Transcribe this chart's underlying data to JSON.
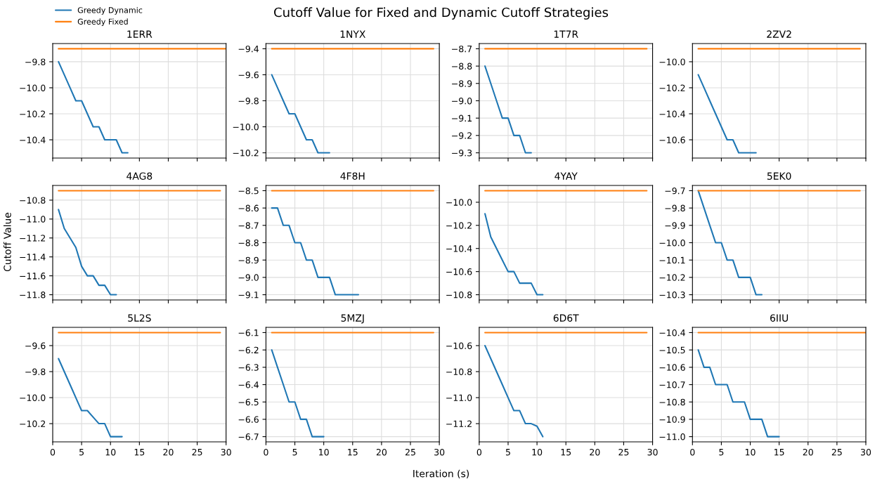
{
  "chart_data": [
    {
      "type": "line",
      "title": "1ERR",
      "annotations": [
        "Cutoff Value for Fixed and Dynamic Cutoff Strategies"
      ],
      "legend": "top left",
      "grid": true,
      "tick_labels": "y",
      "xlim": [
        0,
        30
      ],
      "xticks": [
        0,
        5,
        10,
        15,
        20,
        25,
        30
      ],
      "ylim": [
        -10.54,
        -9.66
      ],
      "yticks": [
        -10.4,
        -10.2,
        {
          "value": -10.0,
          "label": "−10.0"
        },
        -9.8
      ],
      "series": [
        {
          "name": "Greedy Dynamic",
          "color": "#1f77b4",
          "x": [
            1,
            2,
            3,
            4,
            5,
            6,
            7,
            8,
            9,
            10,
            11,
            12,
            13
          ],
          "values": [
            -9.8,
            -9.9,
            -10.0,
            -10.1,
            -10.1,
            -10.2,
            -10.3,
            -10.3,
            -10.4,
            -10.4,
            -10.4,
            -10.5,
            -10.5
          ]
        },
        {
          "name": "Greedy Fixed",
          "color": "#ff7f0e",
          "x": [
            1,
            30
          ],
          "values": [
            -9.7,
            -9.7
          ]
        }
      ]
    },
    {
      "type": "line",
      "title": "1NYX",
      "grid": true,
      "tick_labels": "y",
      "xlim": [
        0,
        30
      ],
      "xticks": [
        0,
        5,
        10,
        15,
        20,
        25,
        30
      ],
      "ylim": [
        -10.24,
        -9.36
      ],
      "yticks": [
        -10.2,
        {
          "value": -10.0,
          "label": "−10.0"
        },
        -9.8,
        -9.6,
        -9.4
      ],
      "series": [
        {
          "color": "#1f77b4",
          "x": [
            1,
            2,
            3,
            4,
            5,
            6,
            7,
            8,
            9,
            10,
            11
          ],
          "values": [
            -9.6,
            -9.7,
            -9.8,
            -9.9,
            -9.9,
            -10.0,
            -10.1,
            -10.1,
            -10.2,
            -10.2,
            -10.2
          ]
        },
        {
          "color": "#ff7f0e",
          "x": [
            1,
            29
          ],
          "values": [
            -9.4,
            -9.4
          ]
        }
      ]
    },
    {
      "type": "line",
      "title": "1T7R",
      "grid": true,
      "tick_labels": "y",
      "xlim": [
        0,
        30
      ],
      "xticks": [
        0,
        5,
        10,
        15,
        20,
        25,
        30
      ],
      "ylim": [
        -9.33,
        -8.67
      ],
      "yticks": [
        -9.3,
        -9.2,
        -9.1,
        {
          "value": -9.0,
          "label": "−9.0"
        },
        -8.9,
        -8.8,
        -8.7
      ],
      "series": [
        {
          "color": "#1f77b4",
          "x": [
            1,
            2,
            3,
            4,
            5,
            6,
            7,
            8,
            9
          ],
          "values": [
            -8.8,
            -8.9,
            -9.0,
            -9.1,
            -9.1,
            -9.2,
            -9.2,
            -9.3,
            -9.3
          ]
        },
        {
          "color": "#ff7f0e",
          "x": [
            1,
            29
          ],
          "values": [
            -8.7,
            -8.7
          ]
        }
      ]
    },
    {
      "type": "line",
      "title": "2ZV2",
      "grid": true,
      "tick_labels": "y",
      "xlim": [
        0,
        30
      ],
      "xticks": [
        0,
        5,
        10,
        15,
        20,
        25,
        30
      ],
      "ylim": [
        -10.74,
        -9.86
      ],
      "yticks": [
        -10.6,
        -10.4,
        -10.2,
        {
          "value": -10.0,
          "label": "−10.0"
        }
      ],
      "series": [
        {
          "color": "#1f77b4",
          "x": [
            1,
            2,
            3,
            4,
            5,
            6,
            7,
            8,
            9,
            10,
            11
          ],
          "values": [
            -10.1,
            -10.2,
            -10.3,
            -10.4,
            -10.5,
            -10.6,
            -10.6,
            -10.7,
            -10.7,
            -10.7,
            -10.7
          ]
        },
        {
          "color": "#ff7f0e",
          "x": [
            1,
            29
          ],
          "values": [
            -9.9,
            -9.9
          ]
        }
      ]
    },
    {
      "type": "line",
      "title": "4AG8",
      "ylabel": "Cutoff Value",
      "grid": true,
      "tick_labels": "y",
      "xlim": [
        0,
        30
      ],
      "xticks": [
        0,
        5,
        10,
        15,
        20,
        25,
        30
      ],
      "ylim": [
        -11.855,
        -10.645
      ],
      "yticks": [
        -11.8,
        -11.6,
        -11.4,
        -11.2,
        {
          "value": -11.0,
          "label": "−11.0"
        },
        -10.8
      ],
      "series": [
        {
          "color": "#1f77b4",
          "x": [
            1,
            2,
            3,
            4,
            5,
            6,
            7,
            8,
            9,
            10,
            11
          ],
          "values": [
            -10.9,
            -11.1,
            -11.2,
            -11.3,
            -11.5,
            -11.6,
            -11.6,
            -11.7,
            -11.7,
            -11.8,
            -11.8
          ]
        },
        {
          "color": "#ff7f0e",
          "x": [
            1,
            29
          ],
          "values": [
            -10.7,
            -10.7
          ]
        }
      ]
    },
    {
      "type": "line",
      "title": "4F8H",
      "grid": true,
      "tick_labels": "y",
      "xlim": [
        0,
        30
      ],
      "xticks": [
        0,
        5,
        10,
        15,
        20,
        25,
        30
      ],
      "ylim": [
        -9.13,
        -8.47
      ],
      "yticks": [
        -9.1,
        {
          "value": -9.0,
          "label": "−9.0"
        },
        -8.9,
        -8.8,
        -8.7,
        -8.6,
        -8.5
      ],
      "series": [
        {
          "color": "#1f77b4",
          "x": [
            1,
            2,
            3,
            4,
            5,
            6,
            7,
            8,
            9,
            10,
            11,
            12,
            13,
            14,
            15,
            16
          ],
          "values": [
            -8.6,
            -8.6,
            -8.7,
            -8.7,
            -8.8,
            -8.8,
            -8.9,
            -8.9,
            -9.0,
            -9.0,
            -9.0,
            -9.1,
            -9.1,
            -9.1,
            -9.1,
            -9.1
          ]
        },
        {
          "color": "#ff7f0e",
          "x": [
            1,
            29
          ],
          "values": [
            -8.5,
            -8.5
          ]
        }
      ]
    },
    {
      "type": "line",
      "title": "4YAY",
      "grid": true,
      "tick_labels": "y",
      "xlim": [
        0,
        30
      ],
      "xticks": [
        0,
        5,
        10,
        15,
        20,
        25,
        30
      ],
      "ylim": [
        -10.845,
        -9.855
      ],
      "yticks": [
        -10.8,
        -10.6,
        -10.4,
        -10.2,
        {
          "value": -10.0,
          "label": "−10.0"
        }
      ],
      "series": [
        {
          "color": "#1f77b4",
          "x": [
            1,
            2,
            3,
            4,
            5,
            6,
            7,
            8,
            9,
            10,
            11
          ],
          "values": [
            -10.1,
            -10.3,
            -10.4,
            -10.5,
            -10.6,
            -10.6,
            -10.7,
            -10.7,
            -10.7,
            -10.8,
            -10.8
          ]
        },
        {
          "color": "#ff7f0e",
          "x": [
            1,
            29
          ],
          "values": [
            -9.9,
            -9.9
          ]
        }
      ]
    },
    {
      "type": "line",
      "title": "5EK0",
      "grid": true,
      "tick_labels": "y",
      "xlim": [
        0,
        30
      ],
      "xticks": [
        0,
        5,
        10,
        15,
        20,
        25,
        30
      ],
      "ylim": [
        -10.33,
        -9.67
      ],
      "yticks": [
        -10.3,
        -10.2,
        -10.1,
        {
          "value": -10.0,
          "label": "−10.0"
        },
        -9.9,
        -9.8,
        -9.7
      ],
      "series": [
        {
          "color": "#1f77b4",
          "x": [
            1,
            2,
            3,
            4,
            5,
            6,
            7,
            8,
            9,
            10,
            11,
            12
          ],
          "values": [
            -9.7,
            -9.8,
            -9.9,
            -10.0,
            -10.0,
            -10.1,
            -10.1,
            -10.2,
            -10.2,
            -10.2,
            -10.3,
            -10.3
          ]
        },
        {
          "color": "#ff7f0e",
          "x": [
            1,
            29
          ],
          "values": [
            -9.7,
            -9.7
          ]
        }
      ]
    },
    {
      "type": "line",
      "title": "5L2S",
      "grid": true,
      "xlim": [
        0,
        30
      ],
      "xticks": [
        0,
        5,
        10,
        15,
        20,
        25,
        30
      ],
      "ylim": [
        -10.34,
        -9.46
      ],
      "yticks": [
        -10.2,
        {
          "value": -10.0,
          "label": "−10.0"
        },
        -9.8,
        -9.6
      ],
      "series": [
        {
          "color": "#1f77b4",
          "x": [
            1,
            2,
            3,
            4,
            5,
            6,
            7,
            8,
            9,
            10,
            11,
            12
          ],
          "values": [
            -9.7,
            -9.8,
            -9.9,
            -10.0,
            -10.1,
            -10.1,
            -10.15,
            -10.2,
            -10.2,
            -10.3,
            -10.3,
            -10.3
          ]
        },
        {
          "color": "#ff7f0e",
          "x": [
            1,
            29
          ],
          "values": [
            -9.5,
            -9.5
          ]
        }
      ]
    },
    {
      "type": "line",
      "title": "5MZJ",
      "xlabel": "Iteration (s)",
      "grid": true,
      "xlim": [
        0,
        30
      ],
      "xticks": [
        0,
        5,
        10,
        15,
        20,
        25,
        30
      ],
      "ylim": [
        -6.73,
        -6.07
      ],
      "yticks": [
        -6.7,
        -6.6,
        -6.5,
        -6.4,
        -6.3,
        -6.2,
        -6.1
      ],
      "series": [
        {
          "color": "#1f77b4",
          "x": [
            1,
            2,
            3,
            4,
            5,
            6,
            7,
            8,
            9,
            10
          ],
          "values": [
            -6.2,
            -6.3,
            -6.4,
            -6.5,
            -6.5,
            -6.6,
            -6.6,
            -6.7,
            -6.7,
            -6.7
          ]
        },
        {
          "color": "#ff7f0e",
          "x": [
            1,
            29
          ],
          "values": [
            -6.1,
            -6.1
          ]
        }
      ]
    },
    {
      "type": "line",
      "title": "6D6T",
      "grid": true,
      "xlim": [
        0,
        30
      ],
      "xticks": [
        0,
        5,
        10,
        15,
        20,
        25,
        30
      ],
      "ylim": [
        -11.34,
        -10.46
      ],
      "yticks": [
        -11.2,
        {
          "value": -11.0,
          "label": "−11.0"
        },
        -10.8,
        -10.6
      ],
      "series": [
        {
          "color": "#1f77b4",
          "x": [
            1,
            2,
            3,
            4,
            5,
            6,
            7,
            8,
            9,
            10,
            11
          ],
          "values": [
            -10.6,
            -10.7,
            -10.8,
            -10.9,
            -11.0,
            -11.1,
            -11.1,
            -11.2,
            -11.2,
            -11.22,
            -11.3
          ]
        },
        {
          "color": "#ff7f0e",
          "x": [
            1,
            29
          ],
          "values": [
            -10.5,
            -10.5
          ]
        }
      ]
    },
    {
      "type": "line",
      "title": "6IIU",
      "grid": true,
      "xlim": [
        0,
        30
      ],
      "xticks": [
        0,
        5,
        10,
        15,
        20,
        25,
        30
      ],
      "ylim": [
        -11.03,
        -10.37
      ],
      "yticks": [
        {
          "value": -11.0,
          "label": "−11.0"
        },
        -10.9,
        -10.8,
        -10.7,
        -10.6,
        -10.5,
        -10.4
      ],
      "series": [
        {
          "color": "#1f77b4",
          "x": [
            1,
            2,
            3,
            4,
            5,
            6,
            7,
            8,
            9,
            10,
            11,
            12,
            13,
            14,
            15
          ],
          "values": [
            -10.5,
            -10.6,
            -10.6,
            -10.7,
            -10.7,
            -10.7,
            -10.8,
            -10.8,
            -10.8,
            -10.9,
            -10.9,
            -10.9,
            -11.0,
            -11.0,
            -11.0
          ]
        },
        {
          "color": "#ff7f0e",
          "x": [
            1,
            30
          ],
          "values": [
            -10.4,
            -10.4
          ]
        }
      ]
    }
  ]
}
